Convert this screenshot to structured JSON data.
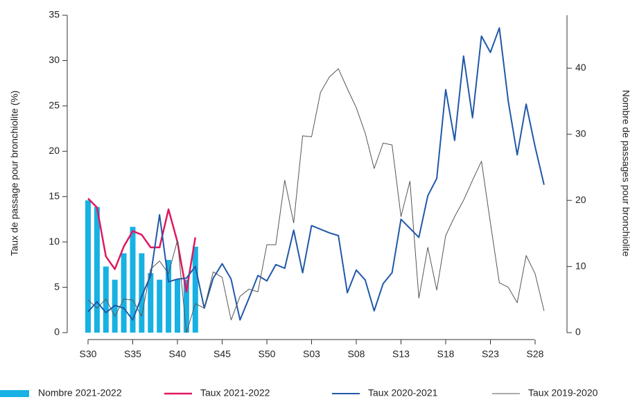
{
  "chart_data": {
    "type": "combo",
    "y_label": "Taux de passage pour bronchiolite (%)",
    "y2_label": "Nombre de passages pour bronchiolite",
    "categories": [
      "S30",
      null,
      null,
      null,
      null,
      "S35",
      null,
      null,
      null,
      null,
      "S40",
      null,
      null,
      null,
      null,
      "S45",
      null,
      null,
      null,
      null,
      "S50",
      null,
      null,
      null,
      null,
      "S03",
      null,
      null,
      null,
      null,
      "S08",
      null,
      null,
      null,
      null,
      "S13",
      null,
      null,
      null,
      null,
      "S18",
      null,
      null,
      null,
      null,
      "S23",
      null,
      null,
      null,
      null,
      "S28",
      null
    ],
    "ylim": [
      0,
      35
    ],
    "yticks": [
      0,
      5,
      10,
      15,
      20,
      25,
      30,
      35
    ],
    "y2lim": [
      0,
      48
    ],
    "y2ticks": [
      0,
      10,
      20,
      30,
      40
    ],
    "series": [
      {
        "name": "Nombre 2021-2022",
        "type": "bar",
        "axis": "y2",
        "color": "#17b1e3",
        "values": [
          20,
          19,
          10,
          8,
          12,
          16,
          12,
          9,
          8,
          11,
          8,
          8,
          13,
          null,
          null,
          null,
          null,
          null,
          null,
          null,
          null,
          null,
          null,
          null,
          null,
          null,
          null,
          null,
          null,
          null,
          null,
          null,
          null,
          null,
          null,
          null,
          null,
          null,
          null,
          null,
          null,
          null,
          null,
          null,
          null,
          null,
          null,
          null,
          null,
          null,
          null,
          null
        ]
      },
      {
        "name": "Taux 2021-2022",
        "type": "line",
        "color": "#e0175f",
        "width": 2.5,
        "values": [
          14.8,
          13.8,
          8.4,
          7.0,
          9.5,
          11.2,
          10.8,
          9.4,
          9.4,
          13.6,
          10.0,
          4.5,
          10.5,
          null,
          null,
          null,
          null,
          null,
          null,
          null,
          null,
          null,
          null,
          null,
          null,
          null,
          null,
          null,
          null,
          null,
          null,
          null,
          null,
          null,
          null,
          null,
          null,
          null,
          null,
          null,
          null,
          null,
          null,
          null,
          null,
          null,
          null,
          null,
          null,
          null,
          null,
          null
        ]
      },
      {
        "name": "Taux 2020-2021",
        "type": "line",
        "color": "#1f58a8",
        "width": 2,
        "values": [
          2.3,
          3.4,
          2.2,
          3.0,
          2.7,
          1.4,
          4.0,
          6.3,
          13.0,
          5.6,
          5.9,
          6.0,
          7.3,
          2.7,
          6.0,
          7.6,
          5.9,
          1.4,
          3.8,
          6.3,
          5.7,
          7.5,
          7.1,
          11.3,
          6.6,
          11.8,
          11.4,
          11.0,
          10.7,
          4.4,
          6.9,
          5.8,
          2.4,
          5.4,
          6.6,
          12.5,
          11.5,
          10.5,
          15.1,
          17.0,
          26.8,
          21.2,
          30.5,
          23.7,
          32.7,
          30.9,
          33.6,
          25.5,
          19.6,
          25.2,
          20.5,
          16.3
        ]
      },
      {
        "name": "Taux 2019-2020",
        "type": "line",
        "color": "#555555",
        "width": 1,
        "values": [
          3.6,
          2.7,
          3.7,
          1.8,
          3.7,
          3.6,
          1.8,
          7.0,
          7.9,
          6.5,
          10.2,
          0,
          3.2,
          2.7,
          6.7,
          6.1,
          1.4,
          4.0,
          4.8,
          4.5,
          9.7,
          9.7,
          16.8,
          12.1,
          21.7,
          21.6,
          26.5,
          28.2,
          29.1,
          26.9,
          24.8,
          22.0,
          18.1,
          20.9,
          20.7,
          12.8,
          16.7,
          3.8,
          9.4,
          4.7,
          10.7,
          12.8,
          14.6,
          16.8,
          18.9,
          12.1,
          5.5,
          5.0,
          3.3,
          8.5,
          6.5,
          2.4
        ]
      }
    ]
  }
}
